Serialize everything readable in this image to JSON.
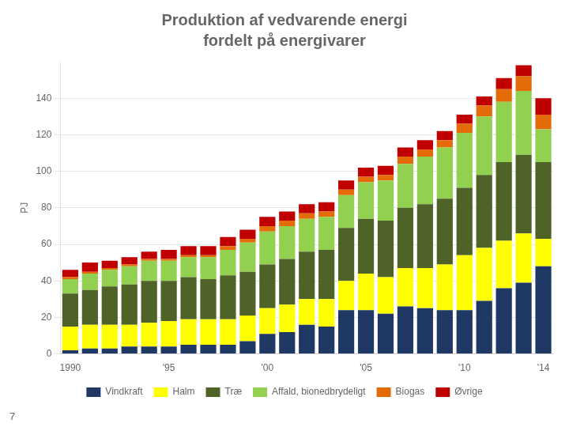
{
  "chart_data": {
    "type": "bar",
    "title": "Produktion af vedvarende energi",
    "subtitle": "fordelt på energivarer",
    "ylabel": "PJ",
    "categories": [
      "1990",
      null,
      null,
      null,
      null,
      "'95",
      null,
      null,
      null,
      null,
      "'00",
      null,
      null,
      null,
      null,
      "'05",
      null,
      null,
      null,
      null,
      "'10",
      null,
      null,
      null,
      "'14"
    ],
    "series": [
      {
        "name": "Vindkraft",
        "color": "#1F3864",
        "values": [
          2,
          3,
          3,
          4,
          4,
          4,
          5,
          5,
          5,
          7,
          11,
          12,
          16,
          15,
          24,
          24,
          22,
          26,
          25,
          24,
          24,
          29,
          36,
          39,
          48
        ]
      },
      {
        "name": "Halm",
        "color": "#FFFF00",
        "values": [
          13,
          13,
          13,
          12,
          13,
          14,
          14,
          14,
          14,
          14,
          14,
          15,
          14,
          15,
          16,
          20,
          20,
          21,
          22,
          25,
          30,
          29,
          26,
          27,
          15
        ]
      },
      {
        "name": "Træ",
        "color": "#4F6228",
        "values": [
          18,
          19,
          21,
          22,
          23,
          22,
          23,
          22,
          24,
          24,
          24,
          25,
          26,
          27,
          29,
          30,
          31,
          33,
          35,
          36,
          37,
          40,
          43,
          43,
          42
        ]
      },
      {
        "name": "Affald, bionedbrydeligt",
        "color": "#92D050",
        "values": [
          8,
          9,
          9,
          10,
          11,
          11,
          11,
          12,
          14,
          16,
          18,
          18,
          18,
          18,
          18,
          20,
          22,
          24,
          26,
          28,
          30,
          32,
          33,
          35,
          18
        ]
      },
      {
        "name": "Biogas",
        "color": "#E36C09",
        "values": [
          1,
          1,
          1,
          1,
          1,
          1,
          1,
          1,
          2,
          2,
          3,
          3,
          3,
          3,
          3,
          3,
          3,
          4,
          4,
          4,
          5,
          6,
          7,
          8,
          8
        ]
      },
      {
        "name": "Øvrige",
        "color": "#C00000",
        "values": [
          4,
          5,
          4,
          4,
          4,
          5,
          5,
          5,
          5,
          5,
          5,
          5,
          5,
          5,
          5,
          5,
          5,
          5,
          5,
          5,
          5,
          5,
          6,
          6,
          9
        ]
      }
    ],
    "ylim": [
      0,
      160
    ],
    "yticks": [
      0,
      20,
      40,
      60,
      80,
      100,
      120,
      140
    ],
    "grid": true,
    "stacked": true,
    "legend": "bottom",
    "annotations": [
      "7"
    ]
  }
}
